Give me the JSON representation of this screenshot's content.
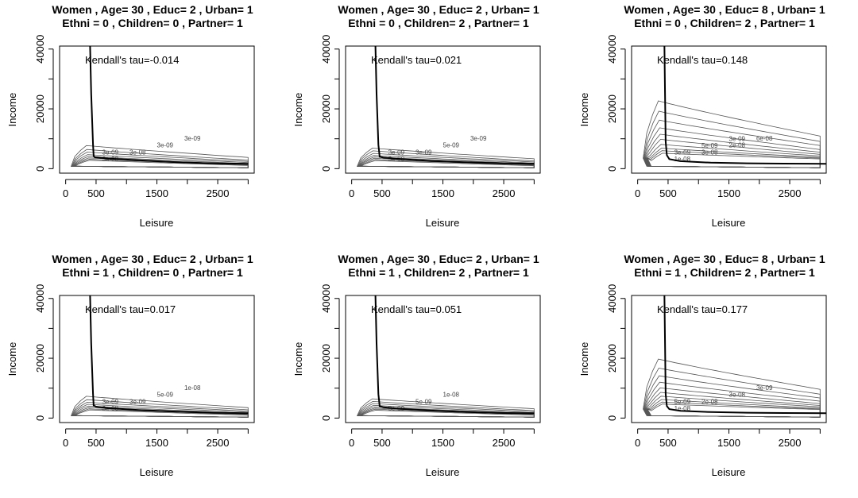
{
  "figure": {
    "common": {
      "xlabel": "Leisure",
      "ylabel": "Income",
      "xticks": [
        0,
        500,
        1500,
        2500
      ],
      "yticks": [
        0,
        20000,
        40000
      ],
      "xlim": [
        -100,
        3100
      ],
      "ylim": [
        -1500,
        41000
      ]
    }
  },
  "chart_data": [
    {
      "type": "line",
      "title": "Women , Age= 30 , Educ= 2 , Urban= 1",
      "subtitle": "Ethni =  0 , Children= 0 , Partner= 1",
      "xlabel": "Leisure",
      "ylabel": "Income",
      "annotation": "Kendall's tau=-0.014",
      "contour_labels": [
        "3e-08",
        "3e-08",
        "3e-09",
        "3e-09",
        "3e-09"
      ],
      "series": [
        {
          "x": [
            400,
            420,
            450,
            460,
            480,
            700,
            1200,
            1800,
            2400,
            3000
          ],
          "y": [
            42000,
            25000,
            8000,
            4200,
            3800,
            3400,
            2800,
            2200,
            1800,
            1600
          ]
        }
      ],
      "contours": {
        "peak_x": 420,
        "peak_y": 1500,
        "levels": [
          7,
          5.5,
          4.5,
          3.5,
          2.8,
          2.2,
          1.7,
          1.3
        ],
        "right_heights": [
          3.5,
          2.5,
          2,
          1.6,
          1.2,
          0.9,
          0.7,
          0.5
        ],
        "scale": 900
      }
    },
    {
      "type": "line",
      "title": "Women , Age= 30 , Educ= 2 , Urban= 1",
      "subtitle": "Ethni =  0 , Children= 2 , Partner= 1",
      "xlabel": "Leisure",
      "ylabel": "Income",
      "annotation": "Kendall's tau=0.021",
      "contour_labels": [
        "3e-08",
        "3e-09",
        "5e-09",
        "3e-09",
        "3e-09"
      ],
      "series": [
        {
          "x": [
            390,
            410,
            440,
            460,
            520,
            800,
            1300,
            1900,
            2500,
            3000
          ],
          "y": [
            42000,
            25000,
            8000,
            4000,
            3700,
            3200,
            2600,
            2100,
            1800,
            1600
          ]
        }
      ],
      "contours": {
        "peak_x": 420,
        "peak_y": 1500,
        "levels": [
          6,
          5,
          4,
          3.2,
          2.6,
          2.1,
          1.6,
          1.2
        ],
        "right_heights": [
          3,
          2.2,
          1.8,
          1.4,
          1.1,
          0.8,
          0.6,
          0.4
        ],
        "scale": 900
      }
    },
    {
      "type": "line",
      "title": "Women , Age= 30 , Educ= 8 , Urban= 1",
      "subtitle": "Ethni =  0 , Children= 2 , Partner= 1",
      "xlabel": "Leisure",
      "ylabel": "Income",
      "annotation": "Kendall's tau=0.148",
      "contour_labels": [
        "1e-08",
        "3e-08",
        "2e-08",
        "6e-08",
        "3e-09",
        "5e-09",
        "3e-09"
      ],
      "series": [
        {
          "x": [
            440,
            450,
            460,
            480,
            520,
            700,
            1200,
            1800,
            2400,
            3100
          ],
          "y": [
            42000,
            25000,
            9000,
            4500,
            3200,
            2500,
            2000,
            1800,
            1700,
            1600
          ]
        }
      ],
      "contours": {
        "peak_x": 300,
        "peak_y": 7000,
        "levels": [
          22,
          18,
          14.5,
          11.5,
          9,
          7,
          5,
          3.5,
          2.5,
          1.5
        ],
        "right_heights": [
          9,
          7,
          5.5,
          4,
          3,
          2.2,
          1.6,
          1.1,
          0.8,
          0.5
        ],
        "scale": 900
      }
    },
    {
      "type": "line",
      "title": "Women , Age= 30 , Educ= 2 , Urban= 1",
      "subtitle": "Ethni =  1 , Children= 0 , Partner= 1",
      "xlabel": "Leisure",
      "ylabel": "Income",
      "annotation": "Kendall's tau=0.017",
      "contour_labels": [
        "3e-08",
        "3e-09",
        "5e-09",
        "1e-08",
        "3e-09"
      ],
      "series": [
        {
          "x": [
            400,
            420,
            450,
            460,
            500,
            700,
            1200,
            1800,
            2400,
            3000
          ],
          "y": [
            42000,
            25000,
            8000,
            4200,
            3800,
            3300,
            2700,
            2200,
            1800,
            1600
          ]
        }
      ],
      "contours": {
        "peak_x": 420,
        "peak_y": 1500,
        "levels": [
          6.5,
          5.2,
          4.2,
          3.4,
          2.7,
          2.1,
          1.6,
          1.2
        ],
        "right_heights": [
          3.2,
          2.4,
          1.9,
          1.5,
          1.1,
          0.8,
          0.6,
          0.4
        ],
        "scale": 900
      }
    },
    {
      "type": "line",
      "title": "Women , Age= 30 , Educ= 2 , Urban= 1",
      "subtitle": "Ethni =  1 , Children= 2 , Partner= 1",
      "xlabel": "Leisure",
      "ylabel": "Income",
      "annotation": "Kendall's tau=0.051",
      "contour_labels": [
        "3e-09",
        "5e-09",
        "1e-08"
      ],
      "series": [
        {
          "x": [
            390,
            410,
            440,
            460,
            520,
            800,
            1300,
            1900,
            2500,
            3000
          ],
          "y": [
            42000,
            25000,
            8000,
            4000,
            3600,
            3100,
            2500,
            2000,
            1700,
            1600
          ]
        }
      ],
      "contours": {
        "peak_x": 420,
        "peak_y": 1500,
        "levels": [
          5.5,
          4.5,
          3.7,
          3,
          2.4,
          1.9,
          1.5,
          1.1
        ],
        "right_heights": [
          2.8,
          2.1,
          1.7,
          1.3,
          1,
          0.8,
          0.6,
          0.4
        ],
        "scale": 900
      }
    },
    {
      "type": "line",
      "title": "Women , Age= 30 , Educ= 8 , Urban= 1",
      "subtitle": "Ethni =  1 , Children= 2 , Partner= 1",
      "xlabel": "Leisure",
      "ylabel": "Income",
      "annotation": "Kendall's tau=0.177",
      "contour_labels": [
        "1e-08",
        "2e-08",
        "3e-08",
        "3e-09",
        "5e-09"
      ],
      "series": [
        {
          "x": [
            440,
            450,
            460,
            480,
            520,
            700,
            1200,
            1800,
            2400,
            3100
          ],
          "y": [
            42000,
            25000,
            8000,
            4000,
            3000,
            2400,
            2000,
            1800,
            1700,
            1600
          ]
        }
      ],
      "contours": {
        "peak_x": 300,
        "peak_y": 6000,
        "levels": [
          19,
          15.5,
          12.5,
          10,
          7.8,
          6,
          4.5,
          3.2,
          2.2,
          1.4
        ],
        "right_heights": [
          8,
          6.2,
          4.8,
          3.6,
          2.7,
          2,
          1.5,
          1,
          0.7,
          0.5
        ],
        "scale": 900
      }
    }
  ]
}
